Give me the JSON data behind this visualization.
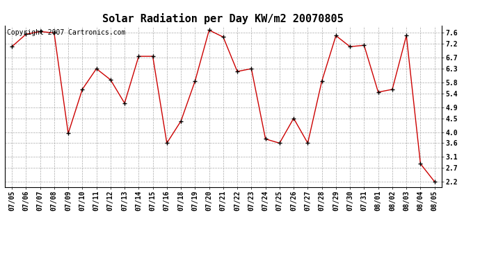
{
  "title": "Solar Radiation per Day KW/m2 20070805",
  "copyright_text": "Copyright 2007 Cartronics.com",
  "line_color": "#cc0000",
  "marker": "+",
  "marker_color": "#000000",
  "background_color": "#ffffff",
  "grid_color": "#aaaaaa",
  "labels": [
    "07/05",
    "07/06",
    "07/07",
    "07/08",
    "07/09",
    "07/10",
    "07/11",
    "07/12",
    "07/13",
    "07/14",
    "07/15",
    "07/16",
    "07/18",
    "07/19",
    "07/20",
    "07/21",
    "07/22",
    "07/23",
    "07/24",
    "07/25",
    "07/26",
    "07/27",
    "07/28",
    "07/29",
    "07/30",
    "07/31",
    "08/01",
    "08/02",
    "08/03",
    "08/04",
    "08/05"
  ],
  "values": [
    7.1,
    7.55,
    7.65,
    7.6,
    3.95,
    5.55,
    6.3,
    5.9,
    5.05,
    6.75,
    6.75,
    3.6,
    4.4,
    5.85,
    7.7,
    7.45,
    6.2,
    6.3,
    3.75,
    3.6,
    4.5,
    3.6,
    5.85,
    7.5,
    7.1,
    7.15,
    5.45,
    5.55,
    7.5,
    2.85,
    2.2
  ],
  "yticks": [
    2.2,
    2.7,
    3.1,
    3.6,
    4.0,
    4.5,
    4.9,
    5.4,
    5.8,
    6.3,
    6.7,
    7.2,
    7.6
  ],
  "ylim": [
    2.0,
    7.85
  ],
  "title_fontsize": 11,
  "tick_fontsize": 7,
  "copyright_fontsize": 7,
  "fig_width": 6.9,
  "fig_height": 3.75,
  "dpi": 100
}
